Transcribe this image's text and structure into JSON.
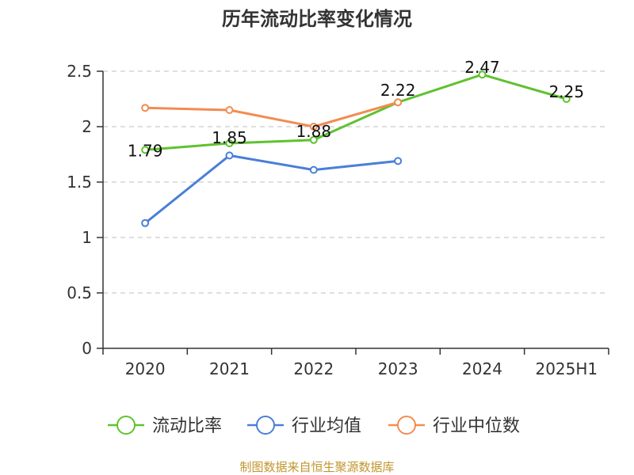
{
  "chart_data": {
    "type": "line",
    "title": "历年流动比率变化情况",
    "categories": [
      "2020",
      "2021",
      "2022",
      "2023",
      "2024",
      "2025H1"
    ],
    "yticks": [
      "0",
      "0.5",
      "1",
      "1.5",
      "2",
      "2.5"
    ],
    "ylim": [
      0,
      2.5
    ],
    "grid": true,
    "legend_position": "bottom",
    "series": [
      {
        "name": "流动比率",
        "color": "#5fc22f",
        "values": [
          1.79,
          1.85,
          1.88,
          2.22,
          2.47,
          2.25
        ],
        "labels": [
          "1.79",
          "1.85",
          "1.88",
          "2.22",
          "2.47",
          "2.25"
        ]
      },
      {
        "name": "行业均值",
        "color": "#4a7fd6",
        "values": [
          1.13,
          1.74,
          1.61,
          1.69,
          null,
          null
        ],
        "labels": []
      },
      {
        "name": "行业中位数",
        "color": "#f28c52",
        "values": [
          2.17,
          2.15,
          2.0,
          2.22,
          null,
          null
        ],
        "labels": []
      }
    ]
  },
  "source_text": "制图数据来自恒生聚源数据库"
}
